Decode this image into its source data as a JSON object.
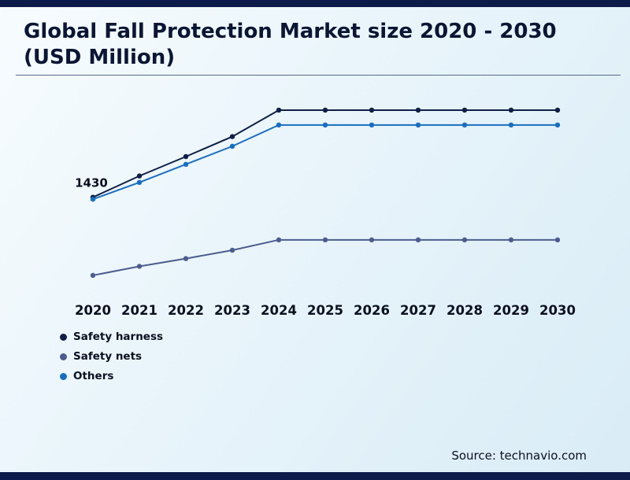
{
  "page": {
    "title": "Global Fall Protection Market size 2020 - 2030 (USD Million)",
    "source": "Source: technavio.com"
  },
  "colors": {
    "accent_bar": "#0d1b4a",
    "title_text": "#0a1633",
    "tick_text": "#0b1020"
  },
  "chart_data": {
    "type": "line",
    "title": "Global Fall Protection Market size 2020 - 2030 (USD Million)",
    "xlabel": "",
    "ylabel": "",
    "categories": [
      "2020",
      "2021",
      "2022",
      "2023",
      "2024",
      "2025",
      "2026",
      "2027",
      "2028",
      "2029",
      "2030"
    ],
    "series": [
      {
        "name": "Safety harness",
        "color": "#101f45",
        "values": [
          1430,
          1760,
          2060,
          2370,
          2780,
          2780,
          2780,
          2780,
          2780,
          2780,
          2780
        ]
      },
      {
        "name": "Safety nets",
        "color": "#4d5c8f",
        "values": [
          220,
          360,
          480,
          610,
          770,
          770,
          770,
          770,
          770,
          770,
          770
        ]
      },
      {
        "name": "Others",
        "color": "#1a6ebd",
        "values": [
          1400,
          1660,
          1940,
          2220,
          2550,
          2550,
          2550,
          2550,
          2550,
          2550,
          2550
        ]
      }
    ],
    "annotations": [
      {
        "series_index": 0,
        "point_index": 0,
        "text": "1430"
      }
    ],
    "ylim": [
      0,
      2950
    ],
    "grid": false,
    "legend_position": "bottom-left",
    "marker": "circle"
  }
}
